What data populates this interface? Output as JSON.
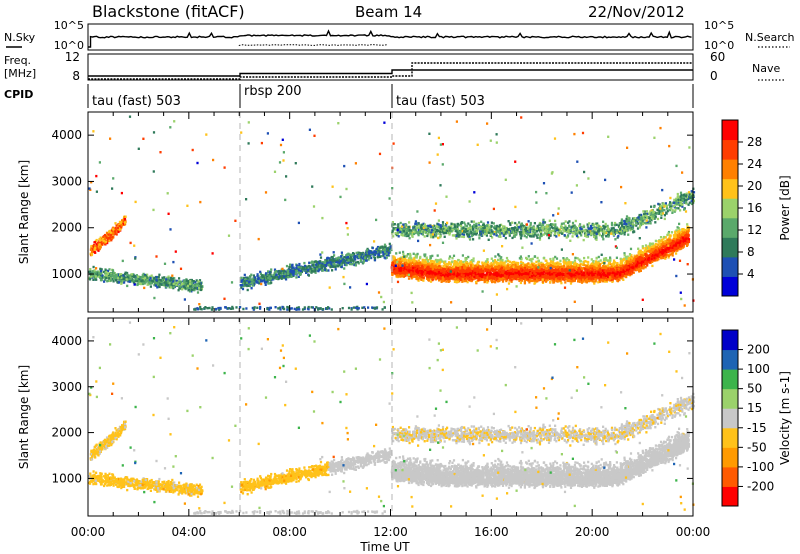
{
  "header": {
    "station": "Blackstone (fitACF)",
    "beam": "Beam 14",
    "date": "22/Nov/2012"
  },
  "top_panels": {
    "nsky_label": "N.Sky",
    "nsearch_label": "N.Search",
    "noise_ticks": [
      "10^5",
      "10^0"
    ],
    "freq_label": "Freq.",
    "freq_unit": "[MHz]",
    "freq_ticks": [
      "12",
      "8"
    ],
    "nave_label": "Nave",
    "nave_ticks": [
      "60",
      "0"
    ],
    "cpid_label": "CPID",
    "cpid_segments": [
      {
        "label": "tau (fast) 503",
        "start": 0,
        "end": 6
      },
      {
        "label": "rbsp 200",
        "start": 6,
        "end": 12
      },
      {
        "label": "tau (fast) 503",
        "start": 12,
        "end": 24
      }
    ]
  },
  "colors": {
    "power": [
      "#0000d8",
      "#1e50b4",
      "#2f7a5a",
      "#5aa96b",
      "#9bd26b",
      "#ffc21a",
      "#ff8000",
      "#ff3d00",
      "#ff0000"
    ],
    "velocity": [
      "#ff0000",
      "#ff5a00",
      "#ff9a00",
      "#ffc21a",
      "#c8c8c8",
      "#9bd26b",
      "#3cb44b",
      "#1e64b4",
      "#0000c8"
    ],
    "grid_dash": "#b4b4b4"
  },
  "chart_data": [
    {
      "type": "heatmap",
      "name": "power",
      "ylabel": "Slant Range [km]",
      "yticks": [
        1000,
        2000,
        3000,
        4000
      ],
      "ylim": [
        180,
        4500
      ],
      "colorbar_label": "Power [dB]",
      "colorbar_ticks": [
        4,
        8,
        12,
        16,
        20,
        24,
        28
      ],
      "colorbar_range": [
        0,
        32
      ]
    },
    {
      "type": "heatmap",
      "name": "velocity",
      "ylabel": "Slant Range [km]",
      "yticks": [
        1000,
        2000,
        3000,
        4000
      ],
      "ylim": [
        180,
        4500
      ],
      "colorbar_label": "Velocity [m s-1]",
      "colorbar_ticks": [
        "200",
        "100",
        "50",
        "15",
        "-15",
        "-50",
        "-100",
        "-200"
      ]
    }
  ],
  "xaxis": {
    "label": "Time UT",
    "ticks": [
      "00:00",
      "04:00",
      "08:00",
      "12:00",
      "16:00",
      "20:00",
      "00:00"
    ],
    "range_hours": [
      0,
      24
    ]
  }
}
